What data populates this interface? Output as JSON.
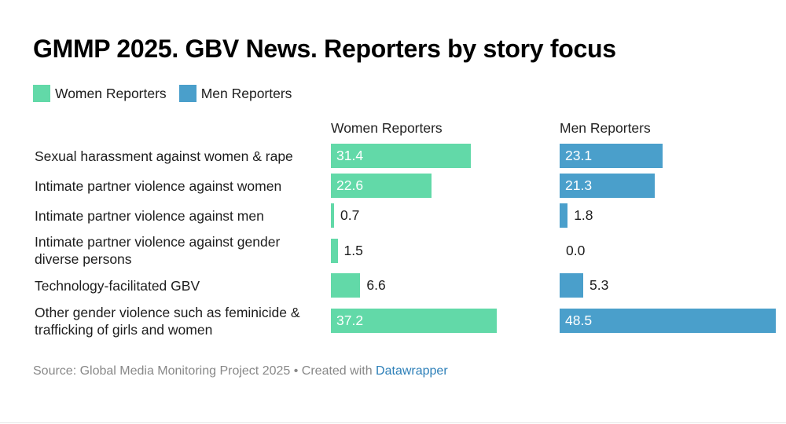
{
  "chart_data": {
    "type": "bar",
    "orientation": "horizontal",
    "title": "GMMP 2025. GBV News. Reporters by story focus",
    "categories": [
      "Sexual harassment against women & rape",
      "Intimate partner violence against women",
      "Intimate partner violence against men",
      "Intimate partner violence against gender diverse persons",
      "Technology-facilitated GBV",
      "Other gender violence such as feminicide & trafficking of girls and women"
    ],
    "series": [
      {
        "name": "Women Reporters",
        "color": "#62d9a8",
        "values": [
          "31.4",
          "22.6",
          "0.7",
          "1.5",
          "6.6",
          "37.2"
        ]
      },
      {
        "name": "Men Reporters",
        "color": "#4a9fcb",
        "values": [
          "23.1",
          "21.3",
          "1.8",
          "0.0",
          "5.3",
          "48.5"
        ]
      }
    ],
    "xlim": [
      0,
      48.5
    ],
    "legend_position": "top-left",
    "source": "Source: Global Media Monitoring Project 2025 • Created with ",
    "source_link": "Datawrapper"
  }
}
